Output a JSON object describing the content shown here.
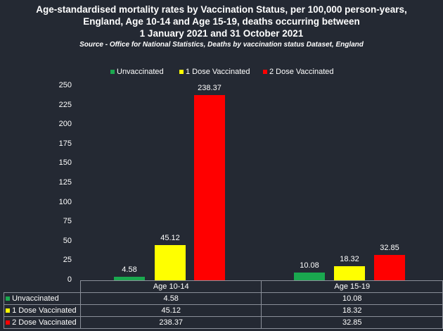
{
  "chart_data": {
    "type": "bar",
    "title": [
      "Age-standardised mortality rates by Vaccination Status, per 100,000 person-years,",
      "England, Age 10-14 and Age 15-19, deaths occurring between",
      "1 January 2021 and 31 October 2021"
    ],
    "subtitle": "Source - Office for National Statistics, Deaths by vaccination status Dataset, England",
    "categories": [
      "Age 10-14",
      "Age 15-19"
    ],
    "series": [
      {
        "name": "Unvaccinated",
        "color": "#1aa84f",
        "values": [
          4.58,
          10.08
        ],
        "labels": [
          "4.58",
          "10.08"
        ]
      },
      {
        "name": "1 Dose Vaccinated",
        "color": "#ffff00",
        "values": [
          45.12,
          18.32
        ],
        "labels": [
          "45.12",
          "18.32"
        ]
      },
      {
        "name": "2 Dose Vaccinated",
        "color": "#ff0000",
        "values": [
          238.37,
          32.85
        ],
        "labels": [
          "238.37",
          "32.85"
        ]
      }
    ],
    "yticks": [
      "0",
      "25",
      "50",
      "75",
      "100",
      "125",
      "150",
      "175",
      "200",
      "225",
      "250"
    ],
    "ylim": [
      0,
      250
    ],
    "legend": "top",
    "data_table": true
  }
}
